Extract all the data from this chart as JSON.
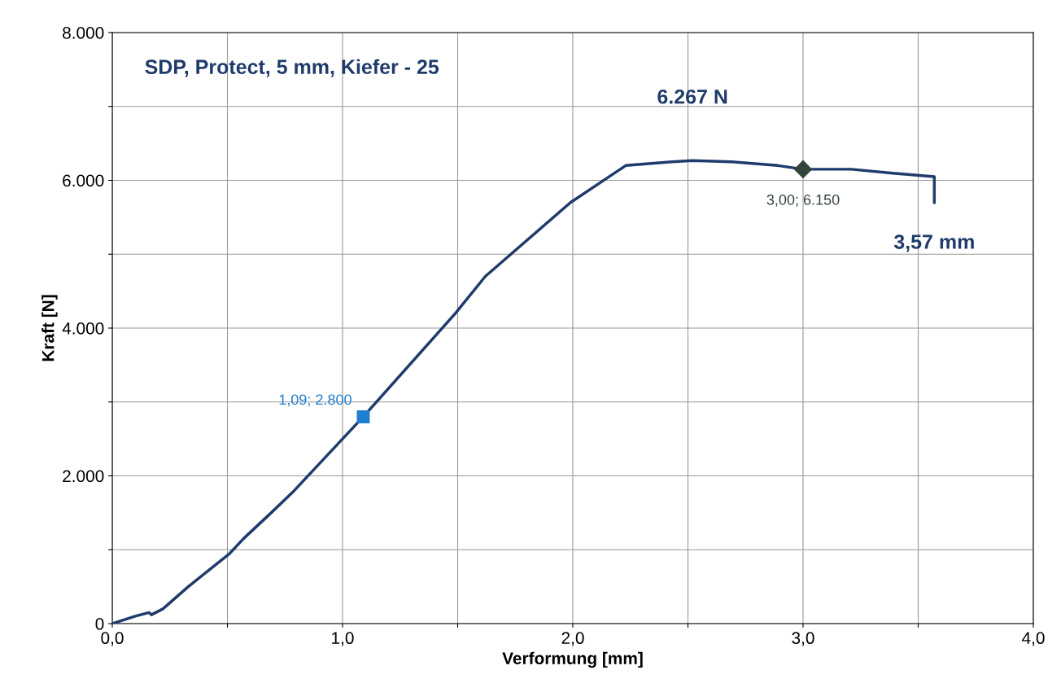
{
  "chart_data": {
    "type": "line",
    "title": "SDP, Protect, 5 mm, Kiefer - 25",
    "xlabel": "Verformung [mm]",
    "ylabel": "Kraft [N]",
    "xlim": [
      0,
      4
    ],
    "ylim": [
      0,
      8000
    ],
    "xticks": [
      {
        "value": 0,
        "label": "0,0"
      },
      {
        "value": 0.5,
        "label": null
      },
      {
        "value": 1,
        "label": "1,0"
      },
      {
        "value": 1.5,
        "label": null
      },
      {
        "value": 2,
        "label": "2,0"
      },
      {
        "value": 2.5,
        "label": null
      },
      {
        "value": 3,
        "label": "3,0"
      },
      {
        "value": 3.5,
        "label": null
      },
      {
        "value": 4,
        "label": "4,0"
      }
    ],
    "yticks": [
      0,
      {
        "value": 1000,
        "label": null
      },
      {
        "value": 2000,
        "label": "2.000"
      },
      {
        "value": 3000,
        "label": null
      },
      {
        "value": 4000,
        "label": "4.000"
      },
      {
        "value": 5000,
        "label": null
      },
      {
        "value": 6000,
        "label": "6.000"
      },
      {
        "value": 7000,
        "label": null
      },
      {
        "value": 8000,
        "label": "8.000"
      }
    ],
    "grid": true,
    "legend": false,
    "line_style": "solid",
    "series": [
      {
        "color": "#1f3b6b",
        "marker": "none",
        "x": [
          0,
          0.05,
          0.1,
          0.16,
          0.17,
          0.22,
          0.33,
          0.51,
          0.57,
          0.69,
          0.79,
          1.09,
          1.49,
          1.62,
          1.99,
          2.23,
          2.43,
          2.52,
          2.69,
          2.89,
          3.0,
          3.21,
          3.38,
          3.57,
          3.57
        ],
        "values": [
          0,
          50,
          100,
          150,
          120,
          200,
          500,
          950,
          1150,
          1500,
          1800,
          2800,
          4200,
          4700,
          5700,
          6200,
          6250,
          6267,
          6250,
          6200,
          6150,
          6150,
          6100,
          6050,
          5700
        ]
      },
      {
        "type": "scatter",
        "color": "#1e7fd0",
        "marker": "square",
        "x": [
          1.09
        ],
        "values": [
          2800
        ],
        "value_labels": [
          "1,09; 2.800"
        ]
      },
      {
        "type": "scatter",
        "color": "#33443a",
        "marker": "diamond",
        "x": [
          3.0
        ],
        "values": [
          6150
        ],
        "value_labels": [
          "3,00; 6.150"
        ]
      }
    ],
    "annotations": [
      {
        "text": "6.267 N",
        "x": 2.52,
        "y": 6267
      },
      {
        "text": "3,57 mm",
        "x": 3.57,
        "y": 5680
      }
    ]
  }
}
